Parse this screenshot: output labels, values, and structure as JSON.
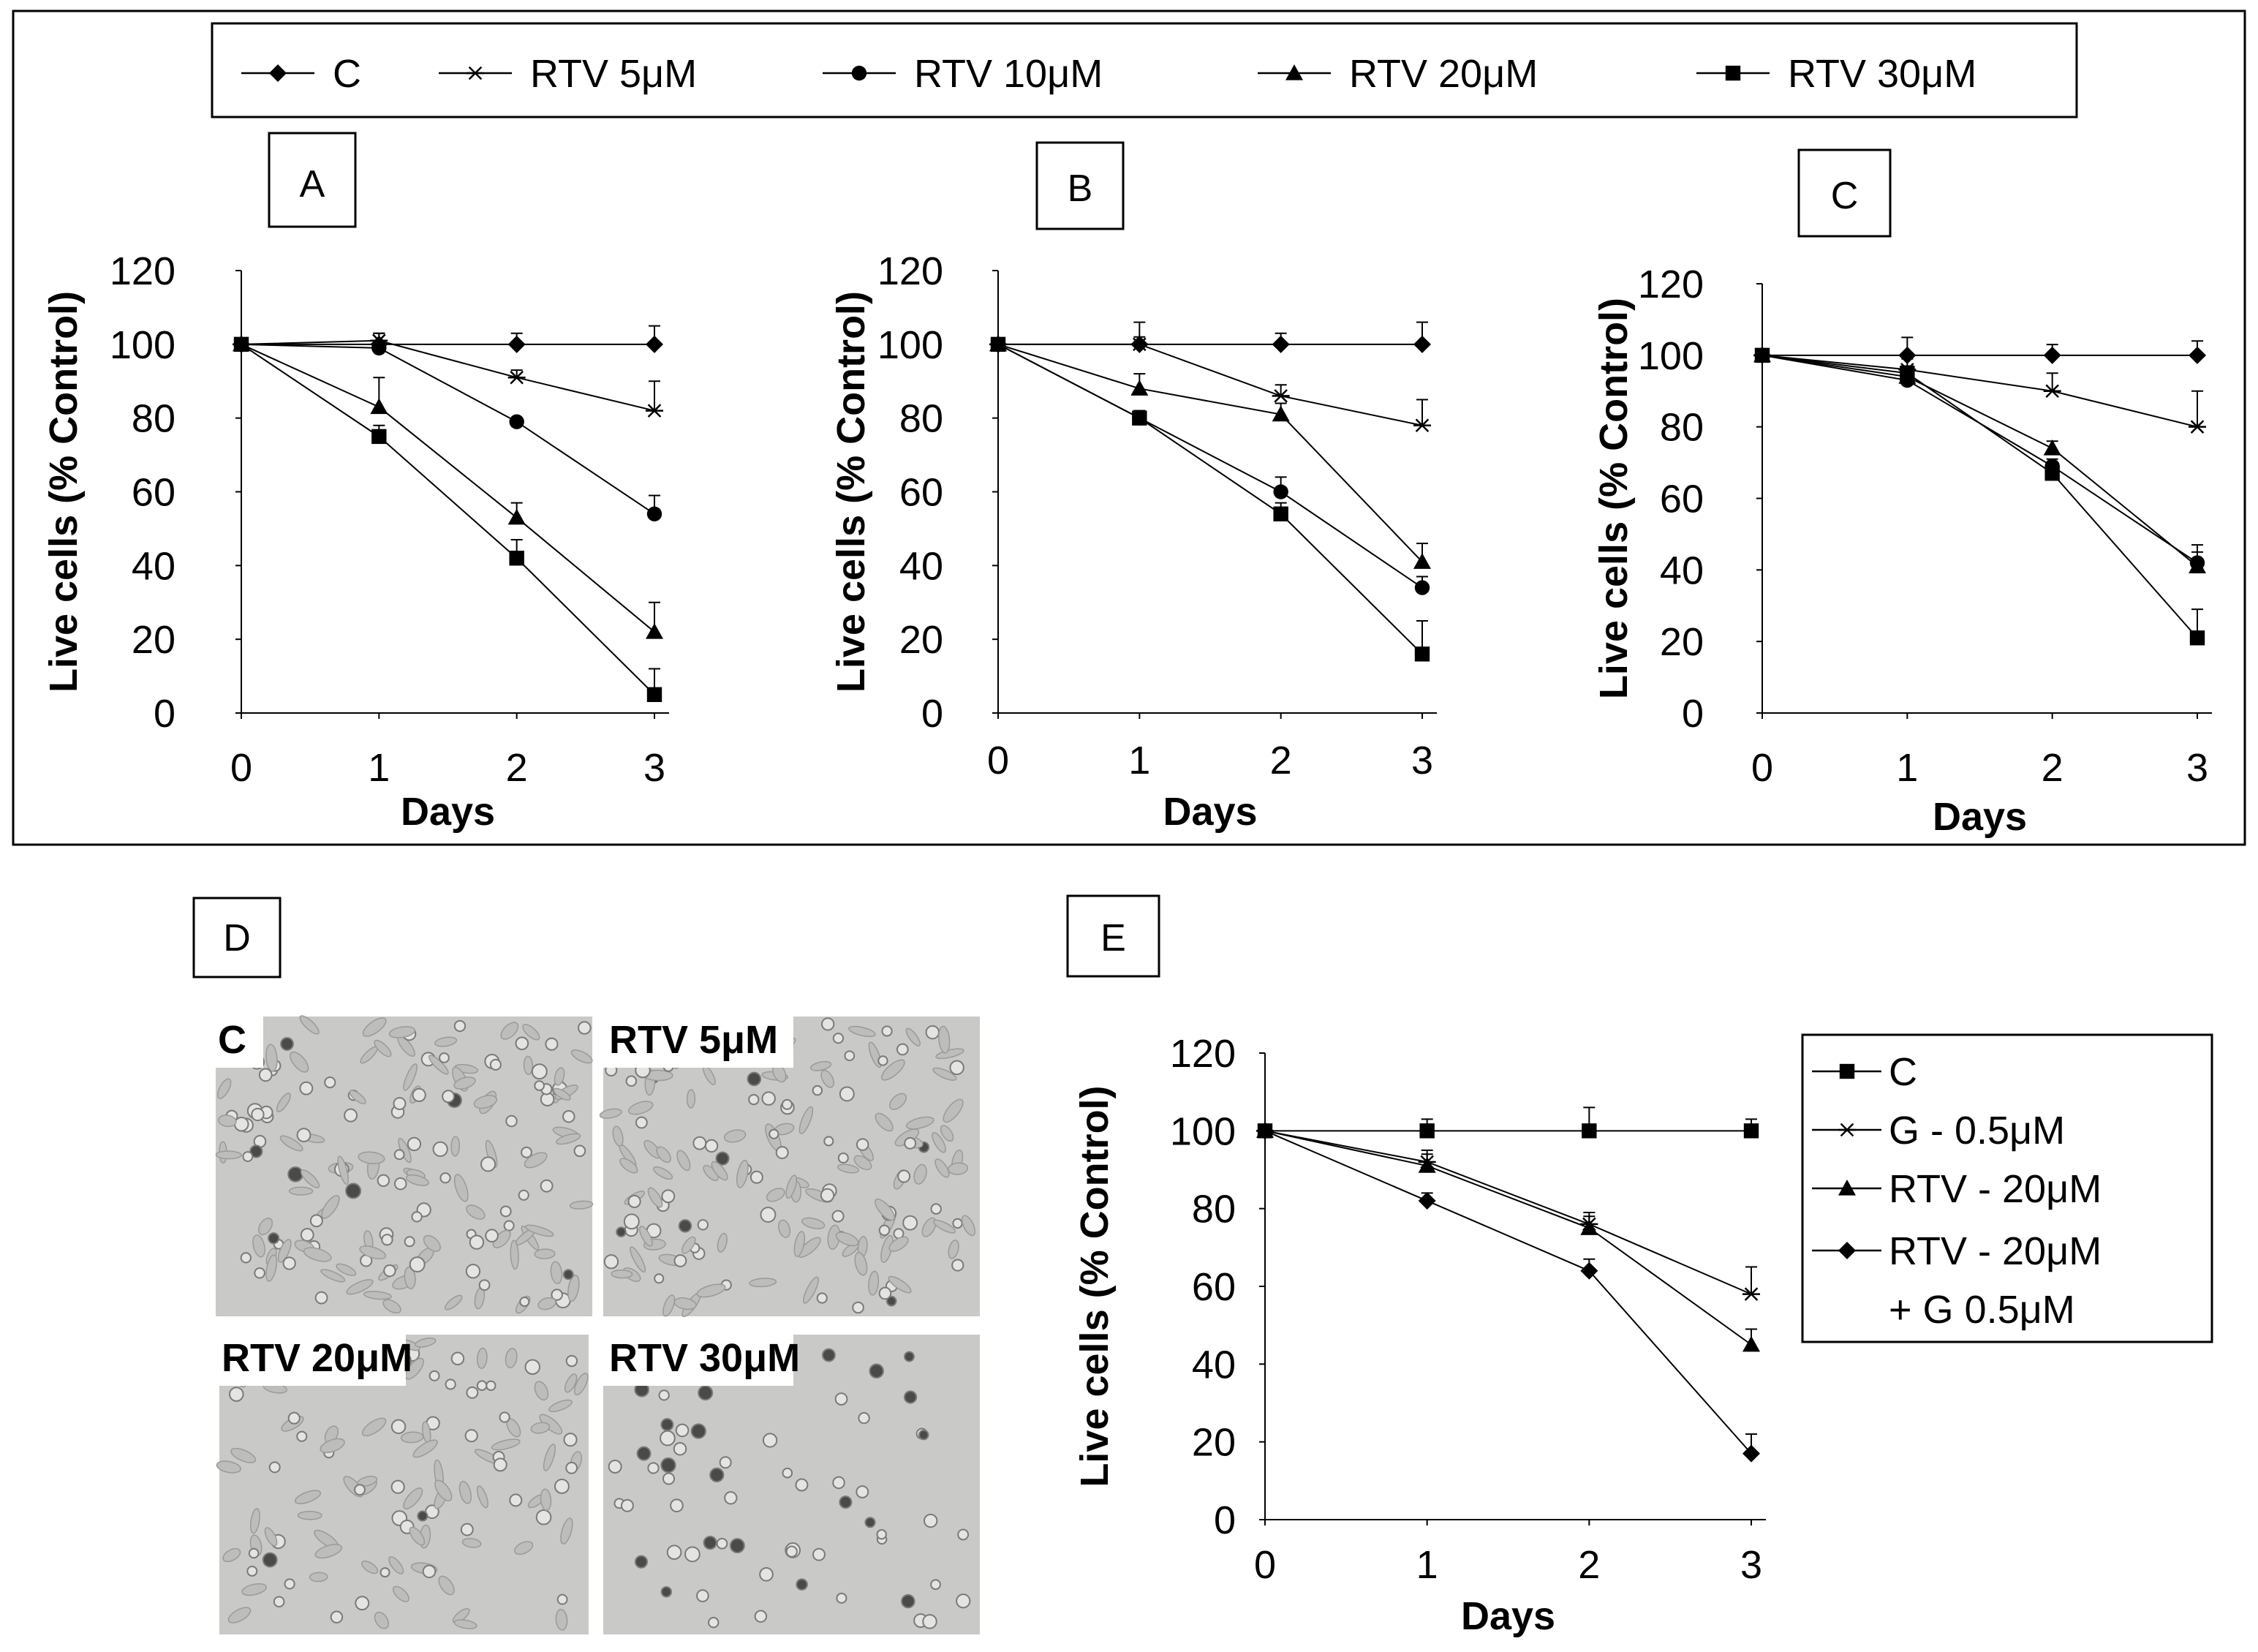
{
  "legend_top": [
    {
      "name": "C",
      "marker": "diamond"
    },
    {
      "name": "RTV 5μM",
      "marker": "star"
    },
    {
      "name": "RTV 10μM",
      "marker": "circle"
    },
    {
      "name": "RTV 20μM",
      "marker": "triangle"
    },
    {
      "name": "RTV 30μM",
      "marker": "square"
    }
  ],
  "panel_d": {
    "label": "D",
    "images": [
      {
        "label": "C",
        "density": "confluent"
      },
      {
        "label": "RTV 5μM",
        "density": "confluent"
      },
      {
        "label": "RTV 20μM",
        "density": "moderate"
      },
      {
        "label": "RTV 30μM",
        "density": "sparse"
      }
    ]
  },
  "legend_e": [
    {
      "lines": [
        "C"
      ],
      "marker": "square"
    },
    {
      "lines": [
        "G - 0.5μM"
      ],
      "marker": "star"
    },
    {
      "lines": [
        "RTV - 20μM"
      ],
      "marker": "triangle"
    },
    {
      "lines": [
        "RTV - 20μM",
        "+ G 0.5μM"
      ],
      "marker": "diamond"
    }
  ],
  "chart_data": [
    {
      "panel": "A",
      "type": "line",
      "xlabel": "Days",
      "ylabel": "Live cells (% Control)",
      "xticks": [
        0,
        1,
        2,
        3
      ],
      "yticks": [
        0,
        20,
        40,
        60,
        80,
        100,
        120
      ],
      "xlim": [
        0,
        3
      ],
      "ylim": [
        0,
        120
      ],
      "series": [
        {
          "name": "C",
          "marker": "diamond",
          "x": [
            0,
            1,
            2,
            3
          ],
          "y": [
            100,
            100,
            100,
            100
          ],
          "err": [
            0,
            3,
            3,
            5
          ]
        },
        {
          "name": "RTV 5μM",
          "marker": "star",
          "x": [
            0,
            1,
            2,
            3
          ],
          "y": [
            100,
            101,
            91,
            82
          ],
          "err": [
            0,
            2,
            2,
            8
          ]
        },
        {
          "name": "RTV 10μM",
          "marker": "circle",
          "x": [
            0,
            1,
            2,
            3
          ],
          "y": [
            100,
            99,
            79,
            54
          ],
          "err": [
            0,
            2,
            1,
            5
          ]
        },
        {
          "name": "RTV 20μM",
          "marker": "triangle",
          "x": [
            0,
            1,
            2,
            3
          ],
          "y": [
            100,
            83,
            53,
            22
          ],
          "err": [
            0,
            8,
            4,
            8
          ]
        },
        {
          "name": "RTV 30μM",
          "marker": "square",
          "x": [
            0,
            1,
            2,
            3
          ],
          "y": [
            100,
            75,
            42,
            5
          ],
          "err": [
            0,
            3,
            5,
            7
          ]
        }
      ]
    },
    {
      "panel": "B",
      "type": "line",
      "xlabel": "Days",
      "ylabel": "Live cells (% Control)",
      "xticks": [
        0,
        1,
        2,
        3
      ],
      "yticks": [
        0,
        20,
        40,
        60,
        80,
        100,
        120
      ],
      "xlim": [
        0,
        3
      ],
      "ylim": [
        0,
        120
      ],
      "series": [
        {
          "name": "C",
          "marker": "diamond",
          "x": [
            0,
            1,
            2,
            3
          ],
          "y": [
            100,
            100,
            100,
            100
          ],
          "err": [
            0,
            6,
            3,
            6
          ]
        },
        {
          "name": "RTV 5μM",
          "marker": "star",
          "x": [
            0,
            1,
            2,
            3
          ],
          "y": [
            100,
            100,
            86,
            78
          ],
          "err": [
            0,
            2,
            3,
            7
          ]
        },
        {
          "name": "RTV 10μM",
          "marker": "circle",
          "x": [
            0,
            1,
            2,
            3
          ],
          "y": [
            100,
            80,
            60,
            34
          ],
          "err": [
            0,
            2,
            4,
            3
          ]
        },
        {
          "name": "RTV 20μM",
          "marker": "triangle",
          "x": [
            0,
            1,
            2,
            3
          ],
          "y": [
            100,
            88,
            81,
            41
          ],
          "err": [
            0,
            4,
            3,
            5
          ]
        },
        {
          "name": "RTV 30μM",
          "marker": "square",
          "x": [
            0,
            1,
            2,
            3
          ],
          "y": [
            100,
            80,
            54,
            16
          ],
          "err": [
            0,
            2,
            3,
            9
          ]
        }
      ]
    },
    {
      "panel": "C",
      "type": "line",
      "xlabel": "Days",
      "ylabel": "Live cells (% Control)",
      "xticks": [
        0,
        1,
        2,
        3
      ],
      "yticks": [
        0,
        20,
        40,
        60,
        80,
        100,
        120
      ],
      "xlim": [
        0,
        3
      ],
      "ylim": [
        0,
        120
      ],
      "series": [
        {
          "name": "C",
          "marker": "diamond",
          "x": [
            0,
            1,
            2,
            3
          ],
          "y": [
            100,
            100,
            100,
            100
          ],
          "err": [
            0,
            5,
            3,
            4
          ]
        },
        {
          "name": "RTV 5μM",
          "marker": "star",
          "x": [
            0,
            1,
            2,
            3
          ],
          "y": [
            100,
            96,
            90,
            80
          ],
          "err": [
            0,
            3,
            5,
            10
          ]
        },
        {
          "name": "RTV 10μM",
          "marker": "circle",
          "x": [
            0,
            1,
            2,
            3
          ],
          "y": [
            100,
            93,
            69,
            42
          ],
          "err": [
            0,
            2,
            2,
            5
          ]
        },
        {
          "name": "RTV 20μM",
          "marker": "triangle",
          "x": [
            0,
            1,
            2,
            3
          ],
          "y": [
            100,
            94,
            74,
            41
          ],
          "err": [
            0,
            2,
            2,
            4
          ]
        },
        {
          "name": "RTV 30μM",
          "marker": "square",
          "x": [
            0,
            1,
            2,
            3
          ],
          "y": [
            100,
            95,
            67,
            21
          ],
          "err": [
            0,
            2,
            3,
            8
          ]
        }
      ]
    },
    {
      "panel": "E",
      "type": "line",
      "xlabel": "Days",
      "ylabel": "Live cells (% Control)",
      "xticks": [
        0,
        1,
        2,
        3
      ],
      "yticks": [
        0,
        20,
        40,
        60,
        80,
        100,
        120
      ],
      "xlim": [
        0,
        3
      ],
      "ylim": [
        0,
        120
      ],
      "series": [
        {
          "name": "C",
          "marker": "square",
          "x": [
            0,
            1,
            2,
            3
          ],
          "y": [
            100,
            100,
            100,
            100
          ],
          "err": [
            0,
            3,
            6,
            3
          ]
        },
        {
          "name": "G - 0.5μM",
          "marker": "star",
          "x": [
            0,
            1,
            2,
            3
          ],
          "y": [
            100,
            92,
            76,
            58
          ],
          "err": [
            0,
            3,
            3,
            7
          ]
        },
        {
          "name": "RTV - 20μM",
          "marker": "triangle",
          "x": [
            0,
            1,
            2,
            3
          ],
          "y": [
            100,
            91,
            75,
            45
          ],
          "err": [
            0,
            3,
            3,
            4
          ]
        },
        {
          "name": "RTV - 20μM + G 0.5μM",
          "marker": "diamond",
          "x": [
            0,
            1,
            2,
            3
          ],
          "y": [
            100,
            82,
            64,
            17
          ],
          "err": [
            0,
            2,
            3,
            5
          ]
        }
      ]
    }
  ]
}
